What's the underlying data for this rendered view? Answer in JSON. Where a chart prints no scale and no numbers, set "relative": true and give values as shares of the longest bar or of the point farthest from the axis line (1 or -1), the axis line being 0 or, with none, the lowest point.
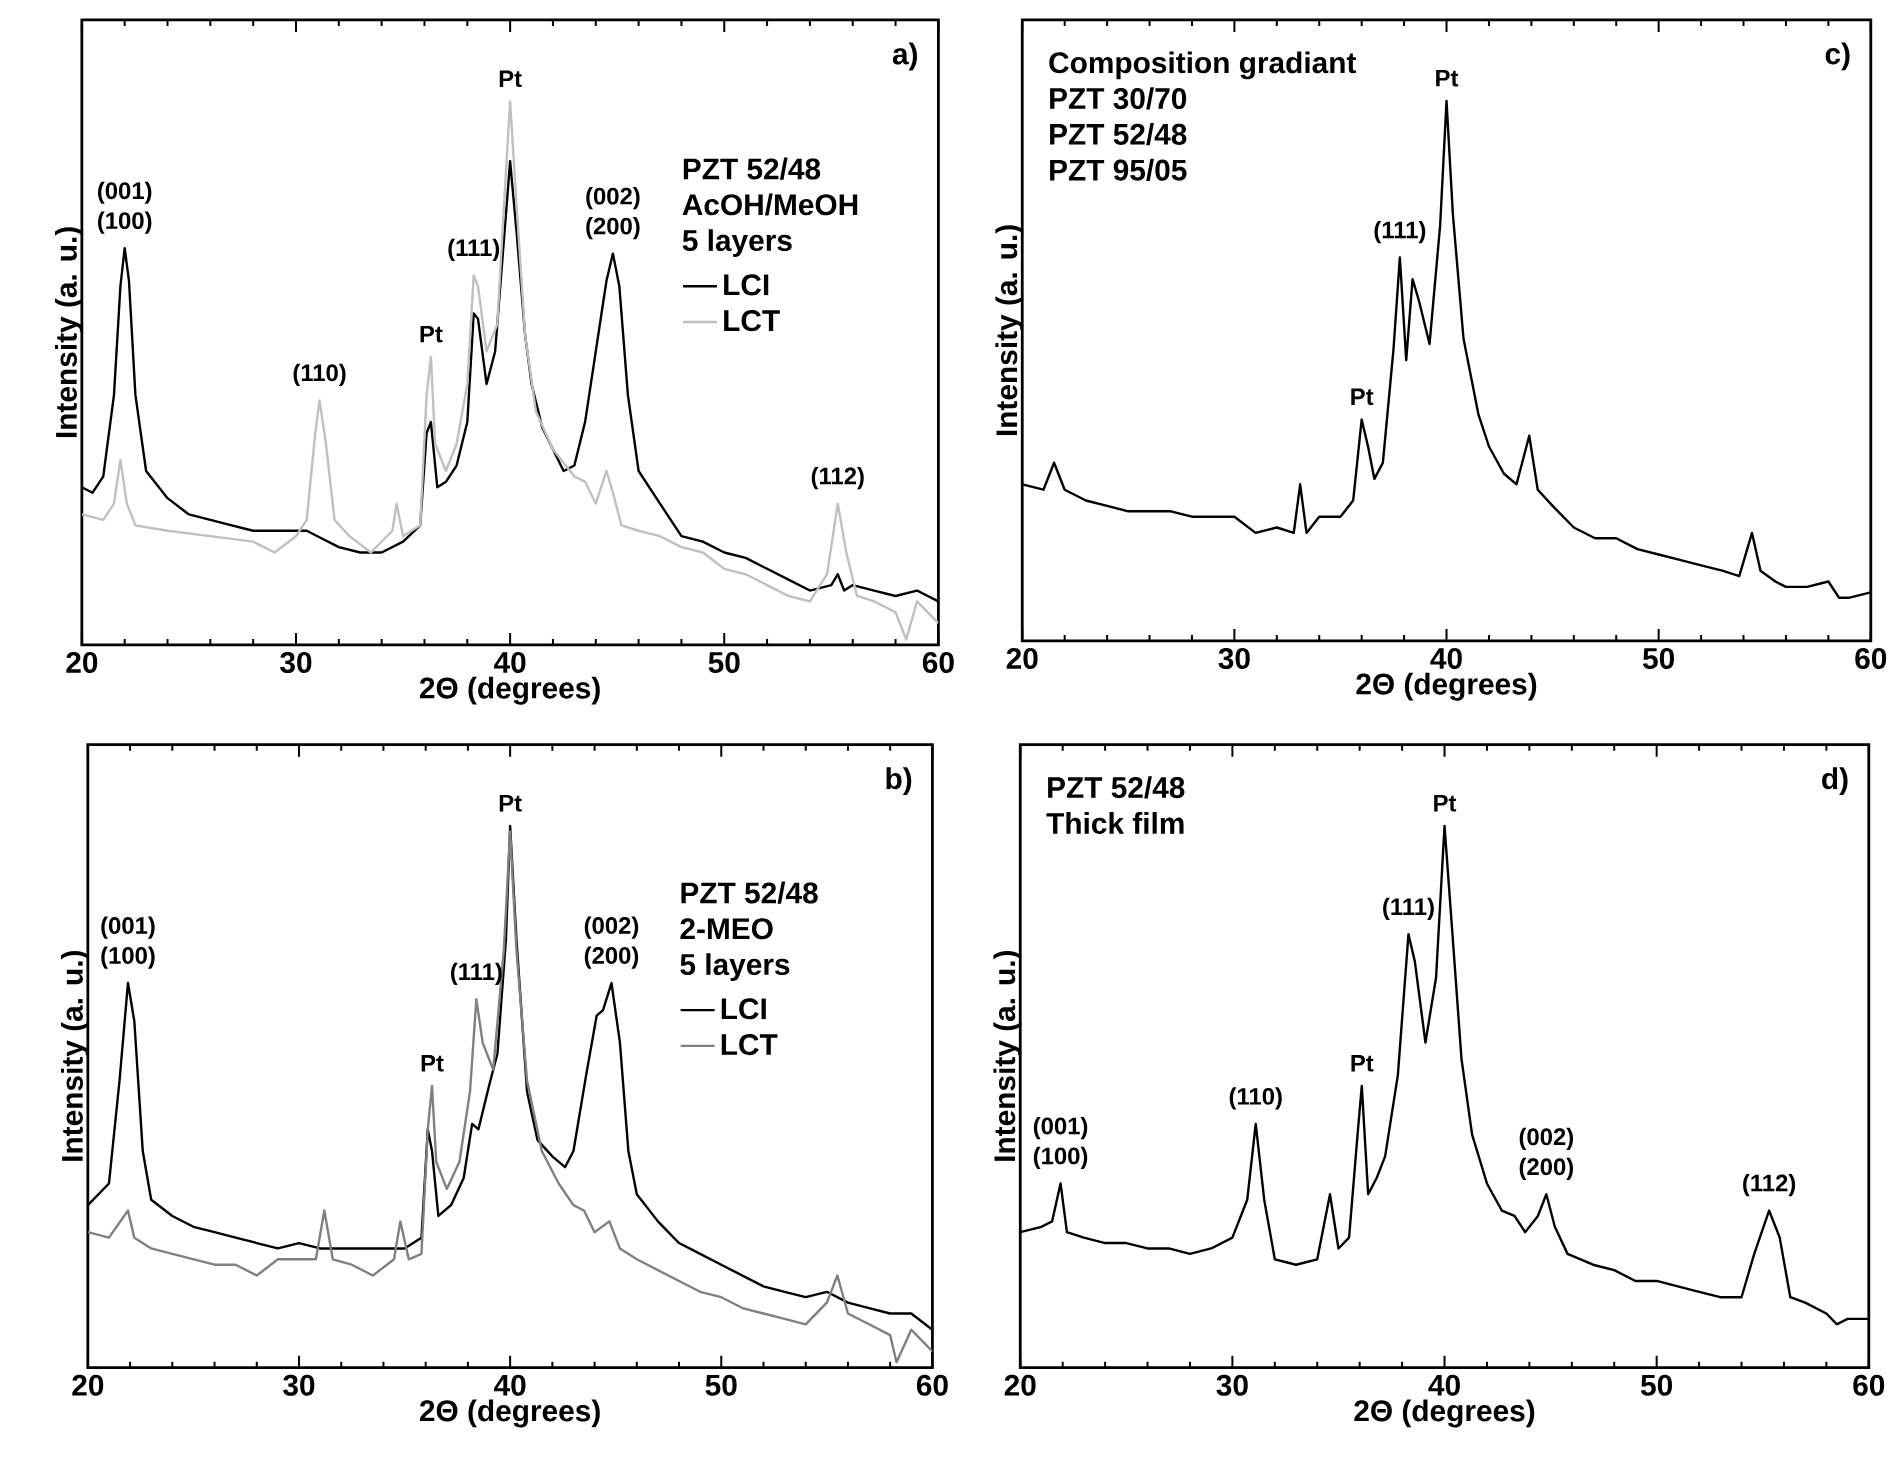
{
  "chart_data": [
    {
      "type": "line",
      "title": "a)",
      "xlabel": "2Θ (degrees)",
      "ylabel": "Intensity (a. u.)",
      "relative": true,
      "legend": "right",
      "xlim": [
        20,
        60
      ],
      "xticks": [
        20,
        30,
        40,
        50,
        60
      ],
      "series": [
        {
          "name": "LCI",
          "color": "#000000",
          "x": [
            20,
            20.5,
            21,
            21.5,
            21.8,
            22,
            22.2,
            22.5,
            23,
            24,
            25,
            26,
            27,
            28,
            29,
            30,
            30.5,
            31,
            32,
            33,
            34,
            35,
            35.8,
            36.1,
            36.3,
            36.6,
            37,
            37.5,
            38,
            38.3,
            38.5,
            38.9,
            39.3,
            39.7,
            40,
            40.3,
            40.7,
            41,
            41.5,
            42,
            42.5,
            43,
            43.5,
            44,
            44.5,
            44.8,
            45.1,
            45.5,
            46,
            47,
            48,
            49,
            50,
            51,
            52,
            53,
            54,
            55,
            55.3,
            55.6,
            56,
            57,
            58,
            59,
            60
          ],
          "values": [
            0.29,
            0.28,
            0.31,
            0.46,
            0.66,
            0.73,
            0.67,
            0.46,
            0.32,
            0.27,
            0.24,
            0.23,
            0.22,
            0.21,
            0.21,
            0.21,
            0.21,
            0.2,
            0.18,
            0.17,
            0.17,
            0.19,
            0.22,
            0.39,
            0.41,
            0.29,
            0.3,
            0.33,
            0.41,
            0.61,
            0.6,
            0.48,
            0.54,
            0.74,
            0.89,
            0.76,
            0.57,
            0.48,
            0.4,
            0.36,
            0.32,
            0.33,
            0.41,
            0.54,
            0.67,
            0.72,
            0.66,
            0.46,
            0.32,
            0.26,
            0.2,
            0.19,
            0.17,
            0.16,
            0.14,
            0.12,
            0.1,
            0.11,
            0.13,
            0.1,
            0.11,
            0.1,
            0.09,
            0.1,
            0.08
          ]
        },
        {
          "name": "LCT",
          "color": "#c0c0c0",
          "x": [
            20,
            21,
            21.5,
            21.8,
            22.1,
            22.5,
            24,
            26,
            28,
            29,
            30,
            30.5,
            30.9,
            31.1,
            31.4,
            31.8,
            32.5,
            33.5,
            34.5,
            34.7,
            35,
            35.8,
            36.1,
            36.3,
            36.5,
            37,
            37.5,
            38,
            38.3,
            38.5,
            38.9,
            39.4,
            39.7,
            40,
            40.3,
            40.7,
            41.2,
            42,
            43,
            43.5,
            44,
            44.5,
            44.8,
            45.2,
            46,
            47,
            48,
            49,
            50,
            51,
            52,
            53,
            54,
            54.8,
            55.3,
            55.7,
            56.2,
            57,
            58,
            58.5,
            59,
            60
          ],
          "values": [
            0.24,
            0.23,
            0.26,
            0.34,
            0.26,
            0.22,
            0.21,
            0.2,
            0.19,
            0.17,
            0.2,
            0.23,
            0.39,
            0.45,
            0.37,
            0.23,
            0.2,
            0.17,
            0.21,
            0.26,
            0.2,
            0.22,
            0.46,
            0.53,
            0.37,
            0.32,
            0.37,
            0.48,
            0.68,
            0.66,
            0.54,
            0.59,
            0.8,
            1.0,
            0.81,
            0.57,
            0.43,
            0.36,
            0.31,
            0.3,
            0.26,
            0.32,
            0.28,
            0.22,
            0.21,
            0.2,
            0.18,
            0.17,
            0.14,
            0.13,
            0.11,
            0.09,
            0.08,
            0.13,
            0.26,
            0.17,
            0.09,
            0.08,
            0.06,
            0.01,
            0.08,
            0.04
          ]
        }
      ],
      "annotations": [
        "PZT 52/48",
        "AcOH/MeOH",
        "5 layers",
        {
          "text": "(001)",
          "x": 22,
          "y": 0.73
        },
        {
          "text": "(100)",
          "x": 22,
          "y": 0.73
        },
        {
          "text": "(110)",
          "x": 31.1,
          "y": 0.45
        },
        {
          "text": "Pt",
          "x": 36.3,
          "y": 0.53
        },
        {
          "text": "(111)",
          "x": 38.3,
          "y": 0.68
        },
        {
          "text": "Pt",
          "x": 40,
          "y": 1.0
        },
        {
          "text": "(002)",
          "x": 44.8,
          "y": 0.72
        },
        {
          "text": "(200)",
          "x": 44.8,
          "y": 0.72
        },
        {
          "text": "(112)",
          "x": 55.3,
          "y": 0.26
        }
      ]
    },
    {
      "type": "line",
      "title": "c)",
      "xlabel": "2Θ (degrees)",
      "ylabel": "Intensity (a. u.)",
      "relative": true,
      "xlim": [
        20,
        60
      ],
      "xticks": [
        20,
        30,
        40,
        50,
        60
      ],
      "series": [
        {
          "color": "#000000",
          "x": [
            20,
            21,
            21.5,
            22,
            23,
            24,
            25,
            26,
            27,
            28,
            29,
            30,
            31,
            32,
            32.8,
            33.1,
            33.4,
            34,
            35,
            35.6,
            36,
            36.3,
            36.6,
            37,
            37.5,
            37.8,
            38.1,
            38.4,
            38.7,
            39.2,
            39.7,
            40,
            40.3,
            40.8,
            41.5,
            42,
            42.7,
            43.3,
            43.9,
            44.3,
            45,
            46,
            47,
            48,
            49,
            50,
            51,
            52,
            53,
            53.8,
            54.4,
            54.8,
            55.5,
            56,
            57,
            58,
            58.5,
            59,
            60
          ],
          "values": [
            0.29,
            0.28,
            0.33,
            0.28,
            0.26,
            0.25,
            0.24,
            0.24,
            0.24,
            0.23,
            0.23,
            0.23,
            0.2,
            0.21,
            0.2,
            0.29,
            0.2,
            0.23,
            0.23,
            0.26,
            0.41,
            0.36,
            0.3,
            0.33,
            0.54,
            0.71,
            0.52,
            0.67,
            0.63,
            0.55,
            0.77,
            1.0,
            0.79,
            0.56,
            0.42,
            0.36,
            0.31,
            0.29,
            0.38,
            0.28,
            0.25,
            0.21,
            0.19,
            0.19,
            0.17,
            0.16,
            0.15,
            0.14,
            0.13,
            0.12,
            0.2,
            0.13,
            0.11,
            0.1,
            0.1,
            0.11,
            0.08,
            0.08,
            0.09
          ]
        }
      ],
      "annotations": [
        "Composition gradiant",
        "PZT 30/70",
        "PZT 52/48",
        "PZT 95/05",
        {
          "text": "Pt",
          "x": 36,
          "y": 0.41
        },
        {
          "text": "(111)",
          "x": 37.8,
          "y": 0.71
        },
        {
          "text": "Pt",
          "x": 40,
          "y": 1.0
        }
      ]
    },
    {
      "type": "line",
      "title": "b)",
      "xlabel": "2Θ (degrees)",
      "ylabel": "Intensity (a. u.)",
      "relative": true,
      "legend": "right",
      "xlim": [
        20,
        60
      ],
      "xticks": [
        20,
        30,
        40,
        50,
        60
      ],
      "series": [
        {
          "name": "LCI",
          "color": "#000000",
          "x": [
            20,
            21,
            21.5,
            21.9,
            22.2,
            22.6,
            23,
            24,
            25,
            26,
            27,
            28,
            29,
            30,
            31,
            32,
            33,
            34,
            35,
            35.8,
            36.1,
            36.3,
            36.6,
            37.2,
            37.8,
            38.2,
            38.5,
            39,
            39.4,
            39.8,
            40,
            40.3,
            40.8,
            41.3,
            42,
            42.6,
            43,
            43.6,
            44.1,
            44.4,
            44.8,
            45.2,
            45.6,
            46,
            47,
            48,
            49,
            50,
            51,
            52,
            53,
            54,
            55,
            56,
            57,
            58,
            59,
            60
          ],
          "values": [
            0.3,
            0.34,
            0.53,
            0.71,
            0.64,
            0.4,
            0.31,
            0.28,
            0.26,
            0.25,
            0.24,
            0.23,
            0.22,
            0.23,
            0.22,
            0.22,
            0.22,
            0.22,
            0.22,
            0.24,
            0.44,
            0.4,
            0.28,
            0.3,
            0.35,
            0.45,
            0.44,
            0.52,
            0.58,
            0.79,
            1.0,
            0.79,
            0.51,
            0.42,
            0.39,
            0.37,
            0.4,
            0.54,
            0.65,
            0.66,
            0.71,
            0.6,
            0.4,
            0.32,
            0.27,
            0.23,
            0.21,
            0.19,
            0.17,
            0.15,
            0.14,
            0.13,
            0.14,
            0.12,
            0.11,
            0.1,
            0.1,
            0.07
          ]
        },
        {
          "name": "LCT",
          "color": "#808080",
          "x": [
            20,
            21,
            21.9,
            22.2,
            23,
            24,
            25,
            26,
            27,
            28,
            29,
            30,
            30.8,
            31.2,
            31.6,
            32.5,
            33.5,
            34.5,
            34.8,
            35.2,
            35.8,
            36.1,
            36.3,
            36.5,
            37,
            37.6,
            38.1,
            38.4,
            38.7,
            39.2,
            39.7,
            40,
            40.3,
            40.8,
            41.5,
            42.3,
            43,
            43.5,
            44,
            44.7,
            45.2,
            46,
            47,
            48,
            49,
            50,
            51,
            52,
            53,
            54,
            55,
            55.5,
            56,
            57,
            58,
            58.3,
            59,
            60
          ],
          "values": [
            0.25,
            0.24,
            0.29,
            0.24,
            0.22,
            0.21,
            0.2,
            0.19,
            0.19,
            0.17,
            0.2,
            0.2,
            0.2,
            0.29,
            0.2,
            0.19,
            0.17,
            0.2,
            0.27,
            0.2,
            0.21,
            0.44,
            0.52,
            0.38,
            0.33,
            0.38,
            0.51,
            0.68,
            0.6,
            0.55,
            0.77,
            0.99,
            0.77,
            0.53,
            0.4,
            0.34,
            0.3,
            0.29,
            0.25,
            0.27,
            0.22,
            0.2,
            0.18,
            0.16,
            0.14,
            0.13,
            0.11,
            0.1,
            0.09,
            0.08,
            0.12,
            0.17,
            0.1,
            0.08,
            0.06,
            0.01,
            0.07,
            0.03
          ]
        }
      ],
      "annotations": [
        "PZT 52/48",
        "2-MEO",
        "5 layers",
        {
          "text": "(001)",
          "x": 21.9,
          "y": 0.71
        },
        {
          "text": "(100)",
          "x": 21.9,
          "y": 0.71
        },
        {
          "text": "Pt",
          "x": 36.3,
          "y": 0.52
        },
        {
          "text": "(111)",
          "x": 38.4,
          "y": 0.68
        },
        {
          "text": "Pt",
          "x": 40,
          "y": 1.0
        },
        {
          "text": "(002)",
          "x": 44.8,
          "y": 0.71
        },
        {
          "text": "(200)",
          "x": 44.8,
          "y": 0.71
        }
      ]
    },
    {
      "type": "line",
      "title": "d)",
      "xlabel": "2Θ (degrees)",
      "ylabel": "Intensity (a. u.)",
      "relative": true,
      "xlim": [
        20,
        60
      ],
      "xticks": [
        20,
        30,
        40,
        50,
        60
      ],
      "series": [
        {
          "color": "#000000",
          "x": [
            20,
            21,
            21.5,
            21.9,
            22.2,
            23,
            24,
            25,
            26,
            27,
            28,
            29,
            30,
            30.7,
            31.1,
            31.5,
            32,
            33,
            34,
            34.6,
            35,
            35.5,
            35.9,
            36.1,
            36.4,
            36.8,
            37.2,
            37.8,
            38.3,
            38.6,
            39.1,
            39.6,
            40,
            40.3,
            40.8,
            41.3,
            42,
            42.7,
            43.3,
            43.8,
            44.4,
            44.8,
            45.2,
            45.8,
            47,
            48,
            49,
            50,
            51,
            52,
            53,
            54,
            54.6,
            55.3,
            55.8,
            56.3,
            57,
            58,
            58.5,
            59,
            60
          ],
          "values": [
            0.25,
            0.26,
            0.27,
            0.34,
            0.25,
            0.24,
            0.23,
            0.23,
            0.22,
            0.22,
            0.21,
            0.22,
            0.24,
            0.31,
            0.45,
            0.31,
            0.2,
            0.19,
            0.2,
            0.32,
            0.22,
            0.24,
            0.43,
            0.52,
            0.32,
            0.35,
            0.39,
            0.54,
            0.8,
            0.75,
            0.6,
            0.72,
            1.0,
            0.84,
            0.57,
            0.43,
            0.34,
            0.29,
            0.28,
            0.25,
            0.28,
            0.32,
            0.26,
            0.21,
            0.19,
            0.18,
            0.16,
            0.16,
            0.15,
            0.14,
            0.13,
            0.13,
            0.21,
            0.29,
            0.24,
            0.13,
            0.12,
            0.1,
            0.08,
            0.09,
            0.09
          ]
        }
      ],
      "annotations": [
        "PZT 52/48",
        "Thick film",
        {
          "text": "(001)",
          "x": 21.9,
          "y": 0.34
        },
        {
          "text": "(100)",
          "x": 21.9,
          "y": 0.34
        },
        {
          "text": "(110)",
          "x": 31.1,
          "y": 0.45
        },
        {
          "text": "Pt",
          "x": 36.1,
          "y": 0.52
        },
        {
          "text": "(111)",
          "x": 38.3,
          "y": 0.8
        },
        {
          "text": "Pt",
          "x": 40,
          "y": 1.0
        },
        {
          "text": "(002)",
          "x": 44.8,
          "y": 0.32
        },
        {
          "text": "(200)",
          "x": 44.8,
          "y": 0.32
        },
        {
          "text": "(112)",
          "x": 55.3,
          "y": 0.29
        }
      ]
    }
  ]
}
